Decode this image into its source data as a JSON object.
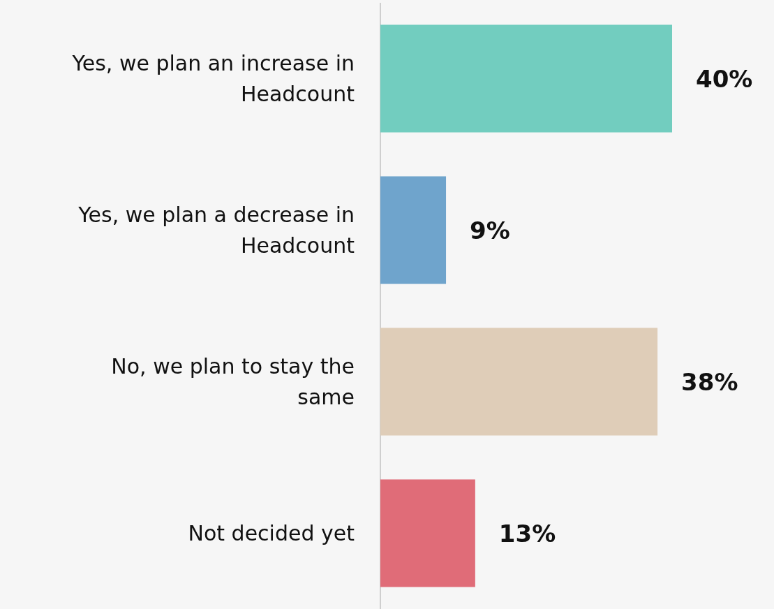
{
  "chart_data": {
    "type": "bar",
    "orientation": "horizontal",
    "data_labels": true,
    "categories": [
      "Yes, we plan an increase in Headcount",
      "Yes, we plan a decrease in Headcount",
      "No, we plan to stay the same",
      "Not decided yet"
    ],
    "values": [
      40,
      9,
      38,
      13
    ],
    "value_labels": [
      "40%",
      "9%",
      "38%",
      "13%"
    ],
    "colors": [
      "#72cdbf",
      "#6fa4cc",
      "#dfcdb8",
      "#e06c78"
    ]
  }
}
